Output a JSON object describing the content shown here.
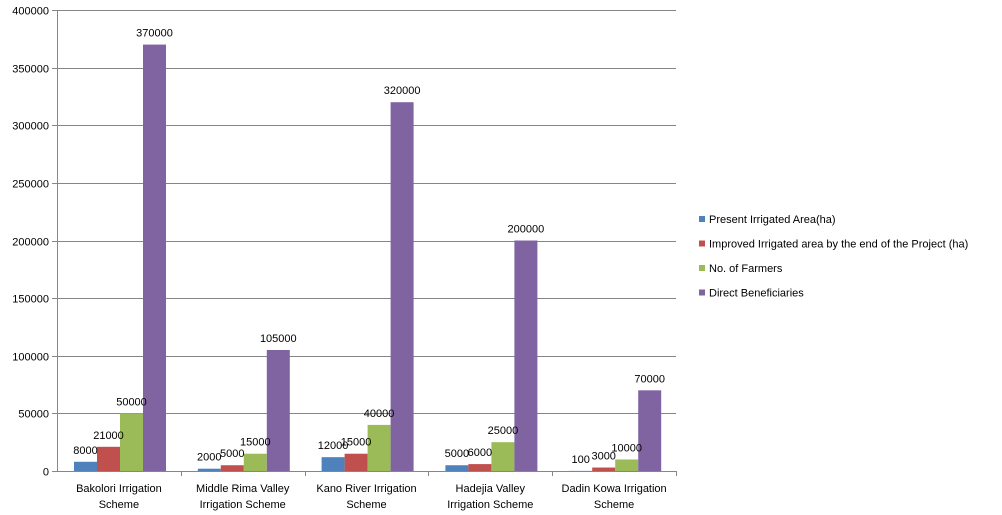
{
  "chart_data": {
    "type": "bar",
    "title": "",
    "xlabel": "",
    "ylabel": "",
    "ylim": [
      0,
      400000
    ],
    "yticks": [
      0,
      50000,
      100000,
      150000,
      200000,
      250000,
      300000,
      350000,
      400000
    ],
    "grid": true,
    "legend_position": "right",
    "categories": [
      [
        "Bakolori Irrigation",
        "Scheme"
      ],
      [
        "Middle Rima Valley",
        "Irrigation Scheme"
      ],
      [
        "Kano River Irrigation",
        "Scheme"
      ],
      [
        "Hadejia Valley",
        "Irrigation Scheme"
      ],
      [
        "Dadin Kowa Irrigation",
        "Scheme"
      ]
    ],
    "series": [
      {
        "name": "Present Irrigated Area(ha)",
        "color": "#4F81BD",
        "values": [
          8000,
          2000,
          12000,
          5000,
          100
        ]
      },
      {
        "name": "Improved Irrigated area by the end of the Project (ha)",
        "color": "#C0504D",
        "values": [
          21000,
          5000,
          15000,
          6000,
          3000
        ]
      },
      {
        "name": "No. of Farmers",
        "color": "#9BBB59",
        "values": [
          50000,
          15000,
          40000,
          25000,
          10000
        ]
      },
      {
        "name": "Direct Beneficiaries",
        "color": "#8064A2",
        "values": [
          370000,
          105000,
          320000,
          200000,
          70000
        ]
      }
    ]
  }
}
